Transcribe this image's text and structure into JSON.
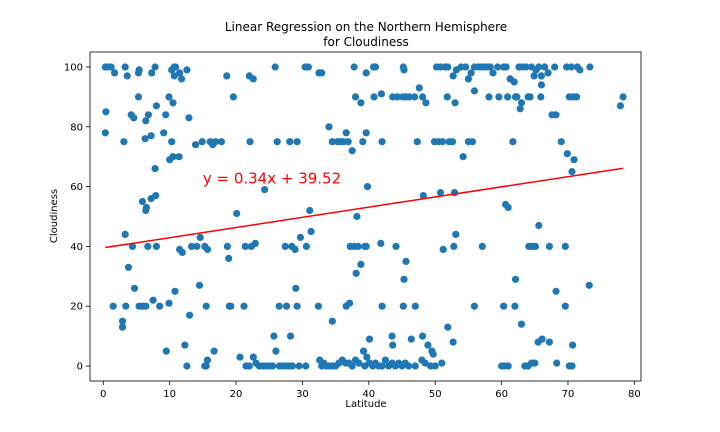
{
  "chart_data": {
    "type": "scatter",
    "title_lines": [
      "Linear Regression on the Northern Hemisphere",
      "for Cloudiness"
    ],
    "xlabel": "Latitude",
    "ylabel": "Cloudiness",
    "xlim": [
      -2,
      81
    ],
    "ylim": [
      -5,
      105
    ],
    "xticks": [
      0,
      10,
      20,
      30,
      40,
      50,
      60,
      70,
      80
    ],
    "yticks": [
      0,
      20,
      40,
      60,
      80,
      100
    ],
    "point_color": "#1f77b4",
    "regression": {
      "slope": 0.34,
      "intercept": 39.52,
      "x_range": [
        0.3,
        78.3
      ],
      "color": "#ff0000",
      "equation": "y = 0.34x + 39.52",
      "equation_at": [
        15,
        61
      ]
    },
    "points": [
      [
        0.3,
        100
      ],
      [
        0.7,
        100
      ],
      [
        1.2,
        100
      ],
      [
        1.7,
        98
      ],
      [
        3.3,
        100
      ],
      [
        3.6,
        97
      ],
      [
        5.3,
        98
      ],
      [
        5.4,
        99
      ],
      [
        7.3,
        98
      ],
      [
        7.8,
        100
      ],
      [
        10.3,
        99
      ],
      [
        10.7,
        100
      ],
      [
        10.9,
        100
      ],
      [
        10.7,
        97
      ],
      [
        11.5,
        98
      ],
      [
        11.8,
        96
      ],
      [
        12.6,
        99
      ],
      [
        18.6,
        97
      ],
      [
        22.0,
        97
      ],
      [
        22.6,
        96
      ],
      [
        25.9,
        100
      ],
      [
        30.4,
        100
      ],
      [
        30.9,
        100
      ],
      [
        32.5,
        98
      ],
      [
        32.9,
        98
      ],
      [
        37.8,
        100
      ],
      [
        39.6,
        98
      ],
      [
        40.7,
        100
      ],
      [
        41.0,
        100
      ],
      [
        45.2,
        100
      ],
      [
        45.3,
        99
      ],
      [
        50.2,
        100
      ],
      [
        50.8,
        100
      ],
      [
        51.5,
        100
      ],
      [
        51.9,
        100
      ],
      [
        52.7,
        97
      ],
      [
        53.2,
        99
      ],
      [
        53.9,
        100
      ],
      [
        54.6,
        100
      ],
      [
        55.0,
        96
      ],
      [
        55.4,
        98
      ],
      [
        55.9,
        100
      ],
      [
        56.5,
        100
      ],
      [
        57.0,
        100
      ],
      [
        57.5,
        100
      ],
      [
        57.9,
        100
      ],
      [
        58.3,
        100
      ],
      [
        58.7,
        98
      ],
      [
        59.4,
        100
      ],
      [
        60.3,
        100
      ],
      [
        60.7,
        100
      ],
      [
        61.3,
        96
      ],
      [
        61.9,
        95
      ],
      [
        62.6,
        100
      ],
      [
        63.2,
        100
      ],
      [
        63.7,
        100
      ],
      [
        64.5,
        100
      ],
      [
        64.9,
        97
      ],
      [
        65.2,
        99
      ],
      [
        65.6,
        100
      ],
      [
        66.0,
        97
      ],
      [
        66.5,
        100
      ],
      [
        67.0,
        98
      ],
      [
        68.0,
        100
      ],
      [
        69.8,
        100
      ],
      [
        70.5,
        100
      ],
      [
        71.4,
        100
      ],
      [
        71.8,
        99
      ],
      [
        73.3,
        100
      ],
      [
        0.4,
        85
      ],
      [
        0.3,
        78
      ],
      [
        3.1,
        75
      ],
      [
        4.2,
        84
      ],
      [
        4.6,
        83
      ],
      [
        5.3,
        90
      ],
      [
        6.4,
        82
      ],
      [
        6.3,
        76
      ],
      [
        6.8,
        84
      ],
      [
        7.2,
        77
      ],
      [
        7.8,
        66
      ],
      [
        8.0,
        87
      ],
      [
        9.1,
        78
      ],
      [
        9.4,
        84
      ],
      [
        9.9,
        90
      ],
      [
        10.5,
        88
      ],
      [
        10.3,
        75
      ],
      [
        12.9,
        83
      ],
      [
        13.9,
        74
      ],
      [
        14.9,
        75
      ],
      [
        16.1,
        75
      ],
      [
        16.5,
        74
      ],
      [
        16.9,
        75
      ],
      [
        17.8,
        75
      ],
      [
        19.6,
        90
      ],
      [
        22.1,
        75
      ],
      [
        26.2,
        75
      ],
      [
        28.1,
        75
      ],
      [
        29.2,
        75
      ],
      [
        34.0,
        80
      ],
      [
        34.5,
        75
      ],
      [
        35.3,
        75
      ],
      [
        35.8,
        75
      ],
      [
        36.2,
        75
      ],
      [
        36.6,
        78
      ],
      [
        36.9,
        75
      ],
      [
        37.5,
        72
      ],
      [
        38.0,
        90
      ],
      [
        38.8,
        88
      ],
      [
        39.1,
        75
      ],
      [
        39.6,
        78
      ],
      [
        40.8,
        90
      ],
      [
        42.0,
        75
      ],
      [
        41.9,
        91
      ],
      [
        43.6,
        90
      ],
      [
        44.3,
        90
      ],
      [
        45.1,
        90
      ],
      [
        45.6,
        90
      ],
      [
        46.1,
        90
      ],
      [
        46.9,
        90
      ],
      [
        47.3,
        75
      ],
      [
        47.6,
        93
      ],
      [
        48.1,
        90
      ],
      [
        48.6,
        88
      ],
      [
        49.9,
        75
      ],
      [
        50.5,
        75
      ],
      [
        51.1,
        75
      ],
      [
        51.8,
        90
      ],
      [
        52.1,
        75
      ],
      [
        52.6,
        75
      ],
      [
        53.0,
        88
      ],
      [
        54.2,
        70
      ],
      [
        55.0,
        75
      ],
      [
        55.6,
        75
      ],
      [
        55.9,
        92
      ],
      [
        58.1,
        90
      ],
      [
        59.6,
        90
      ],
      [
        60.9,
        90
      ],
      [
        61.7,
        75
      ],
      [
        62.1,
        90
      ],
      [
        62.3,
        90
      ],
      [
        62.8,
        86
      ],
      [
        63.0,
        88
      ],
      [
        64.0,
        90
      ],
      [
        64.3,
        90
      ],
      [
        65.9,
        90
      ],
      [
        66.0,
        94
      ],
      [
        67.6,
        84
      ],
      [
        68.2,
        84
      ],
      [
        69.0,
        75
      ],
      [
        69.9,
        71
      ],
      [
        70.2,
        90
      ],
      [
        70.8,
        90
      ],
      [
        70.9,
        69
      ],
      [
        70.6,
        65
      ],
      [
        71.3,
        90
      ],
      [
        77.9,
        87
      ],
      [
        78.3,
        90
      ],
      [
        3.3,
        44
      ],
      [
        3.8,
        33
      ],
      [
        4.4,
        40
      ],
      [
        5.9,
        55
      ],
      [
        6.4,
        52
      ],
      [
        6.5,
        53
      ],
      [
        6.7,
        40
      ],
      [
        7.2,
        56
      ],
      [
        7.9,
        57
      ],
      [
        8.0,
        40
      ],
      [
        10.0,
        69
      ],
      [
        10.5,
        70
      ],
      [
        11.4,
        70
      ],
      [
        11.5,
        39
      ],
      [
        11.9,
        38
      ],
      [
        13.3,
        40
      ],
      [
        14.1,
        40
      ],
      [
        14.6,
        43
      ],
      [
        15.3,
        40
      ],
      [
        15.7,
        39
      ],
      [
        18.7,
        40
      ],
      [
        18.9,
        36
      ],
      [
        20.1,
        51
      ],
      [
        21.4,
        40
      ],
      [
        22.3,
        40
      ],
      [
        22.9,
        41
      ],
      [
        24.3,
        59
      ],
      [
        27.4,
        40
      ],
      [
        28.4,
        40
      ],
      [
        28.9,
        39
      ],
      [
        29.2,
        20
      ],
      [
        29.7,
        43
      ],
      [
        30.6,
        40
      ],
      [
        31.1,
        52
      ],
      [
        31.3,
        45
      ],
      [
        37.2,
        40
      ],
      [
        37.8,
        40
      ],
      [
        38.2,
        50
      ],
      [
        38.4,
        40
      ],
      [
        38.8,
        34
      ],
      [
        39.4,
        40
      ],
      [
        39.6,
        40
      ],
      [
        39.8,
        60
      ],
      [
        41.8,
        41
      ],
      [
        44.1,
        40
      ],
      [
        45.3,
        29
      ],
      [
        45.6,
        35
      ],
      [
        48.2,
        57
      ],
      [
        50.8,
        58
      ],
      [
        51.2,
        39
      ],
      [
        52.8,
        40
      ],
      [
        52.9,
        58
      ],
      [
        53.1,
        44
      ],
      [
        57.1,
        40
      ],
      [
        60.6,
        54
      ],
      [
        61.0,
        53
      ],
      [
        62.1,
        29
      ],
      [
        64.1,
        40
      ],
      [
        64.6,
        40
      ],
      [
        65.1,
        40
      ],
      [
        65.6,
        47
      ],
      [
        67.2,
        40
      ],
      [
        68.2,
        25
      ],
      [
        69.6,
        40
      ],
      [
        73.2,
        27
      ],
      [
        1.5,
        20
      ],
      [
        2.9,
        15
      ],
      [
        2.9,
        13
      ],
      [
        3.4,
        20
      ],
      [
        4.7,
        26
      ],
      [
        5.4,
        20
      ],
      [
        5.9,
        20
      ],
      [
        6.4,
        20
      ],
      [
        7.5,
        22
      ],
      [
        8.5,
        20
      ],
      [
        9.5,
        5
      ],
      [
        9.9,
        21
      ],
      [
        10.8,
        25
      ],
      [
        12.3,
        7
      ],
      [
        13.0,
        17
      ],
      [
        14.5,
        27
      ],
      [
        15.5,
        20
      ],
      [
        19.0,
        20
      ],
      [
        19.2,
        20
      ],
      [
        21.2,
        20
      ],
      [
        25.7,
        10
      ],
      [
        26.5,
        20
      ],
      [
        27.6,
        20
      ],
      [
        28.2,
        10
      ],
      [
        29.0,
        26
      ],
      [
        32.4,
        20
      ],
      [
        34.5,
        15
      ],
      [
        36.6,
        20
      ],
      [
        37.1,
        21
      ],
      [
        38.1,
        31
      ],
      [
        40.1,
        9
      ],
      [
        42.0,
        20
      ],
      [
        43.5,
        10
      ],
      [
        43.6,
        7
      ],
      [
        45.2,
        20
      ],
      [
        46.4,
        9
      ],
      [
        47.0,
        20
      ],
      [
        48.1,
        10
      ],
      [
        48.9,
        7
      ],
      [
        49.5,
        5
      ],
      [
        49.7,
        4
      ],
      [
        51.9,
        13
      ],
      [
        52.7,
        8
      ],
      [
        55.9,
        20
      ],
      [
        60.3,
        20
      ],
      [
        62.0,
        20
      ],
      [
        63.0,
        14
      ],
      [
        65.5,
        8
      ],
      [
        66.1,
        9
      ],
      [
        67.2,
        8
      ],
      [
        69.6,
        20
      ],
      [
        70.7,
        7
      ],
      [
        12.6,
        0
      ],
      [
        15.3,
        0
      ],
      [
        15.5,
        0
      ],
      [
        15.7,
        2
      ],
      [
        16.7,
        5
      ],
      [
        20.6,
        3
      ],
      [
        21.5,
        0
      ],
      [
        22.0,
        0
      ],
      [
        22.6,
        3
      ],
      [
        23.0,
        1
      ],
      [
        23.5,
        0
      ],
      [
        24.0,
        0
      ],
      [
        24.5,
        0
      ],
      [
        25.0,
        0
      ],
      [
        25.5,
        0
      ],
      [
        26.0,
        5
      ],
      [
        26.5,
        0
      ],
      [
        27.0,
        0
      ],
      [
        27.5,
        0
      ],
      [
        28.0,
        0
      ],
      [
        28.5,
        0
      ],
      [
        29.5,
        0
      ],
      [
        30.5,
        0
      ],
      [
        32.6,
        2
      ],
      [
        32.9,
        0
      ],
      [
        33.2,
        1
      ],
      [
        33.6,
        0
      ],
      [
        34.0,
        0
      ],
      [
        34.5,
        0
      ],
      [
        35.0,
        0
      ],
      [
        35.5,
        1
      ],
      [
        36.0,
        2
      ],
      [
        36.5,
        1
      ],
      [
        37.0,
        1
      ],
      [
        37.5,
        0
      ],
      [
        38.0,
        2
      ],
      [
        38.5,
        1
      ],
      [
        39.2,
        5
      ],
      [
        39.4,
        0
      ],
      [
        39.7,
        3
      ],
      [
        40.1,
        1
      ],
      [
        40.6,
        0
      ],
      [
        41.0,
        1
      ],
      [
        41.5,
        0
      ],
      [
        42.0,
        0
      ],
      [
        42.5,
        2
      ],
      [
        43.0,
        0
      ],
      [
        43.5,
        1
      ],
      [
        44.0,
        0
      ],
      [
        44.5,
        1
      ],
      [
        45.0,
        0
      ],
      [
        45.5,
        1
      ],
      [
        46.0,
        0
      ],
      [
        47.0,
        0
      ],
      [
        48.0,
        2
      ],
      [
        48.5,
        1
      ],
      [
        49.3,
        0
      ],
      [
        50.0,
        0
      ],
      [
        51.0,
        1
      ],
      [
        60.0,
        0
      ],
      [
        60.4,
        0
      ],
      [
        61.0,
        0
      ],
      [
        63.5,
        0
      ],
      [
        64.0,
        0
      ],
      [
        64.5,
        1
      ],
      [
        65.0,
        1
      ],
      [
        68.3,
        1
      ],
      [
        70.2,
        0
      ],
      [
        70.6,
        0
      ]
    ]
  }
}
